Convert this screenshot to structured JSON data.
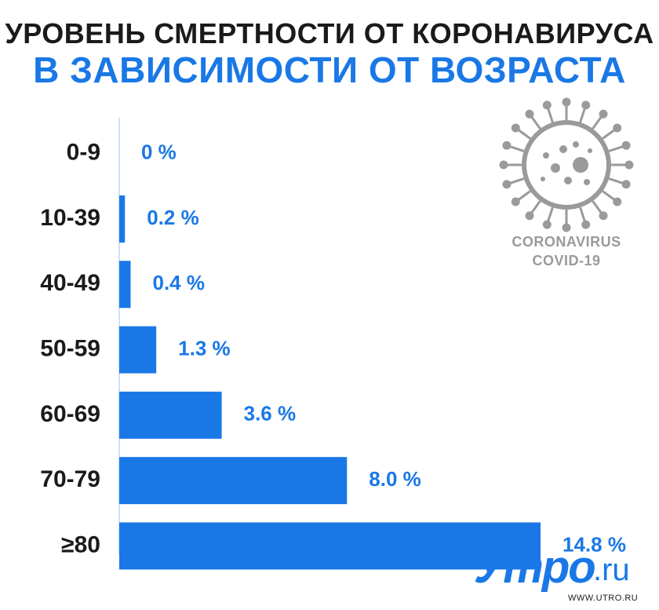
{
  "title": {
    "line1": "УРОВЕНЬ СМЕРТНОСТИ ОТ КОРОНАВИРУСА",
    "line2": "В ЗАВИСИМОСТИ ОТ ВОЗРАСТА"
  },
  "badge": {
    "icon": "coronavirus-icon",
    "line1": "CORONAVIRUS",
    "line2": "COVID-19"
  },
  "logo": {
    "main": "Утро",
    "tld": ".ru",
    "url": "WWW.UTRO.RU"
  },
  "colors": {
    "bar": "#1a78e6",
    "title_accent": "#1a78e6",
    "text": "#1a1a1a",
    "icon": "#9a9a9a"
  },
  "chart_data": {
    "type": "bar",
    "orientation": "horizontal",
    "categories": [
      "0-9",
      "10-39",
      "40-49",
      "50-59",
      "60-69",
      "70-79",
      "≥80"
    ],
    "values": [
      0,
      0.2,
      0.4,
      1.3,
      3.6,
      8.0,
      14.8
    ],
    "value_labels": [
      "0 %",
      "0.2 %",
      "0.4 %",
      "1.3 %",
      "3.6 %",
      "8.0 %",
      "14.8 %"
    ],
    "xlim": [
      0,
      14.8
    ],
    "grid": false,
    "legend": "none"
  }
}
